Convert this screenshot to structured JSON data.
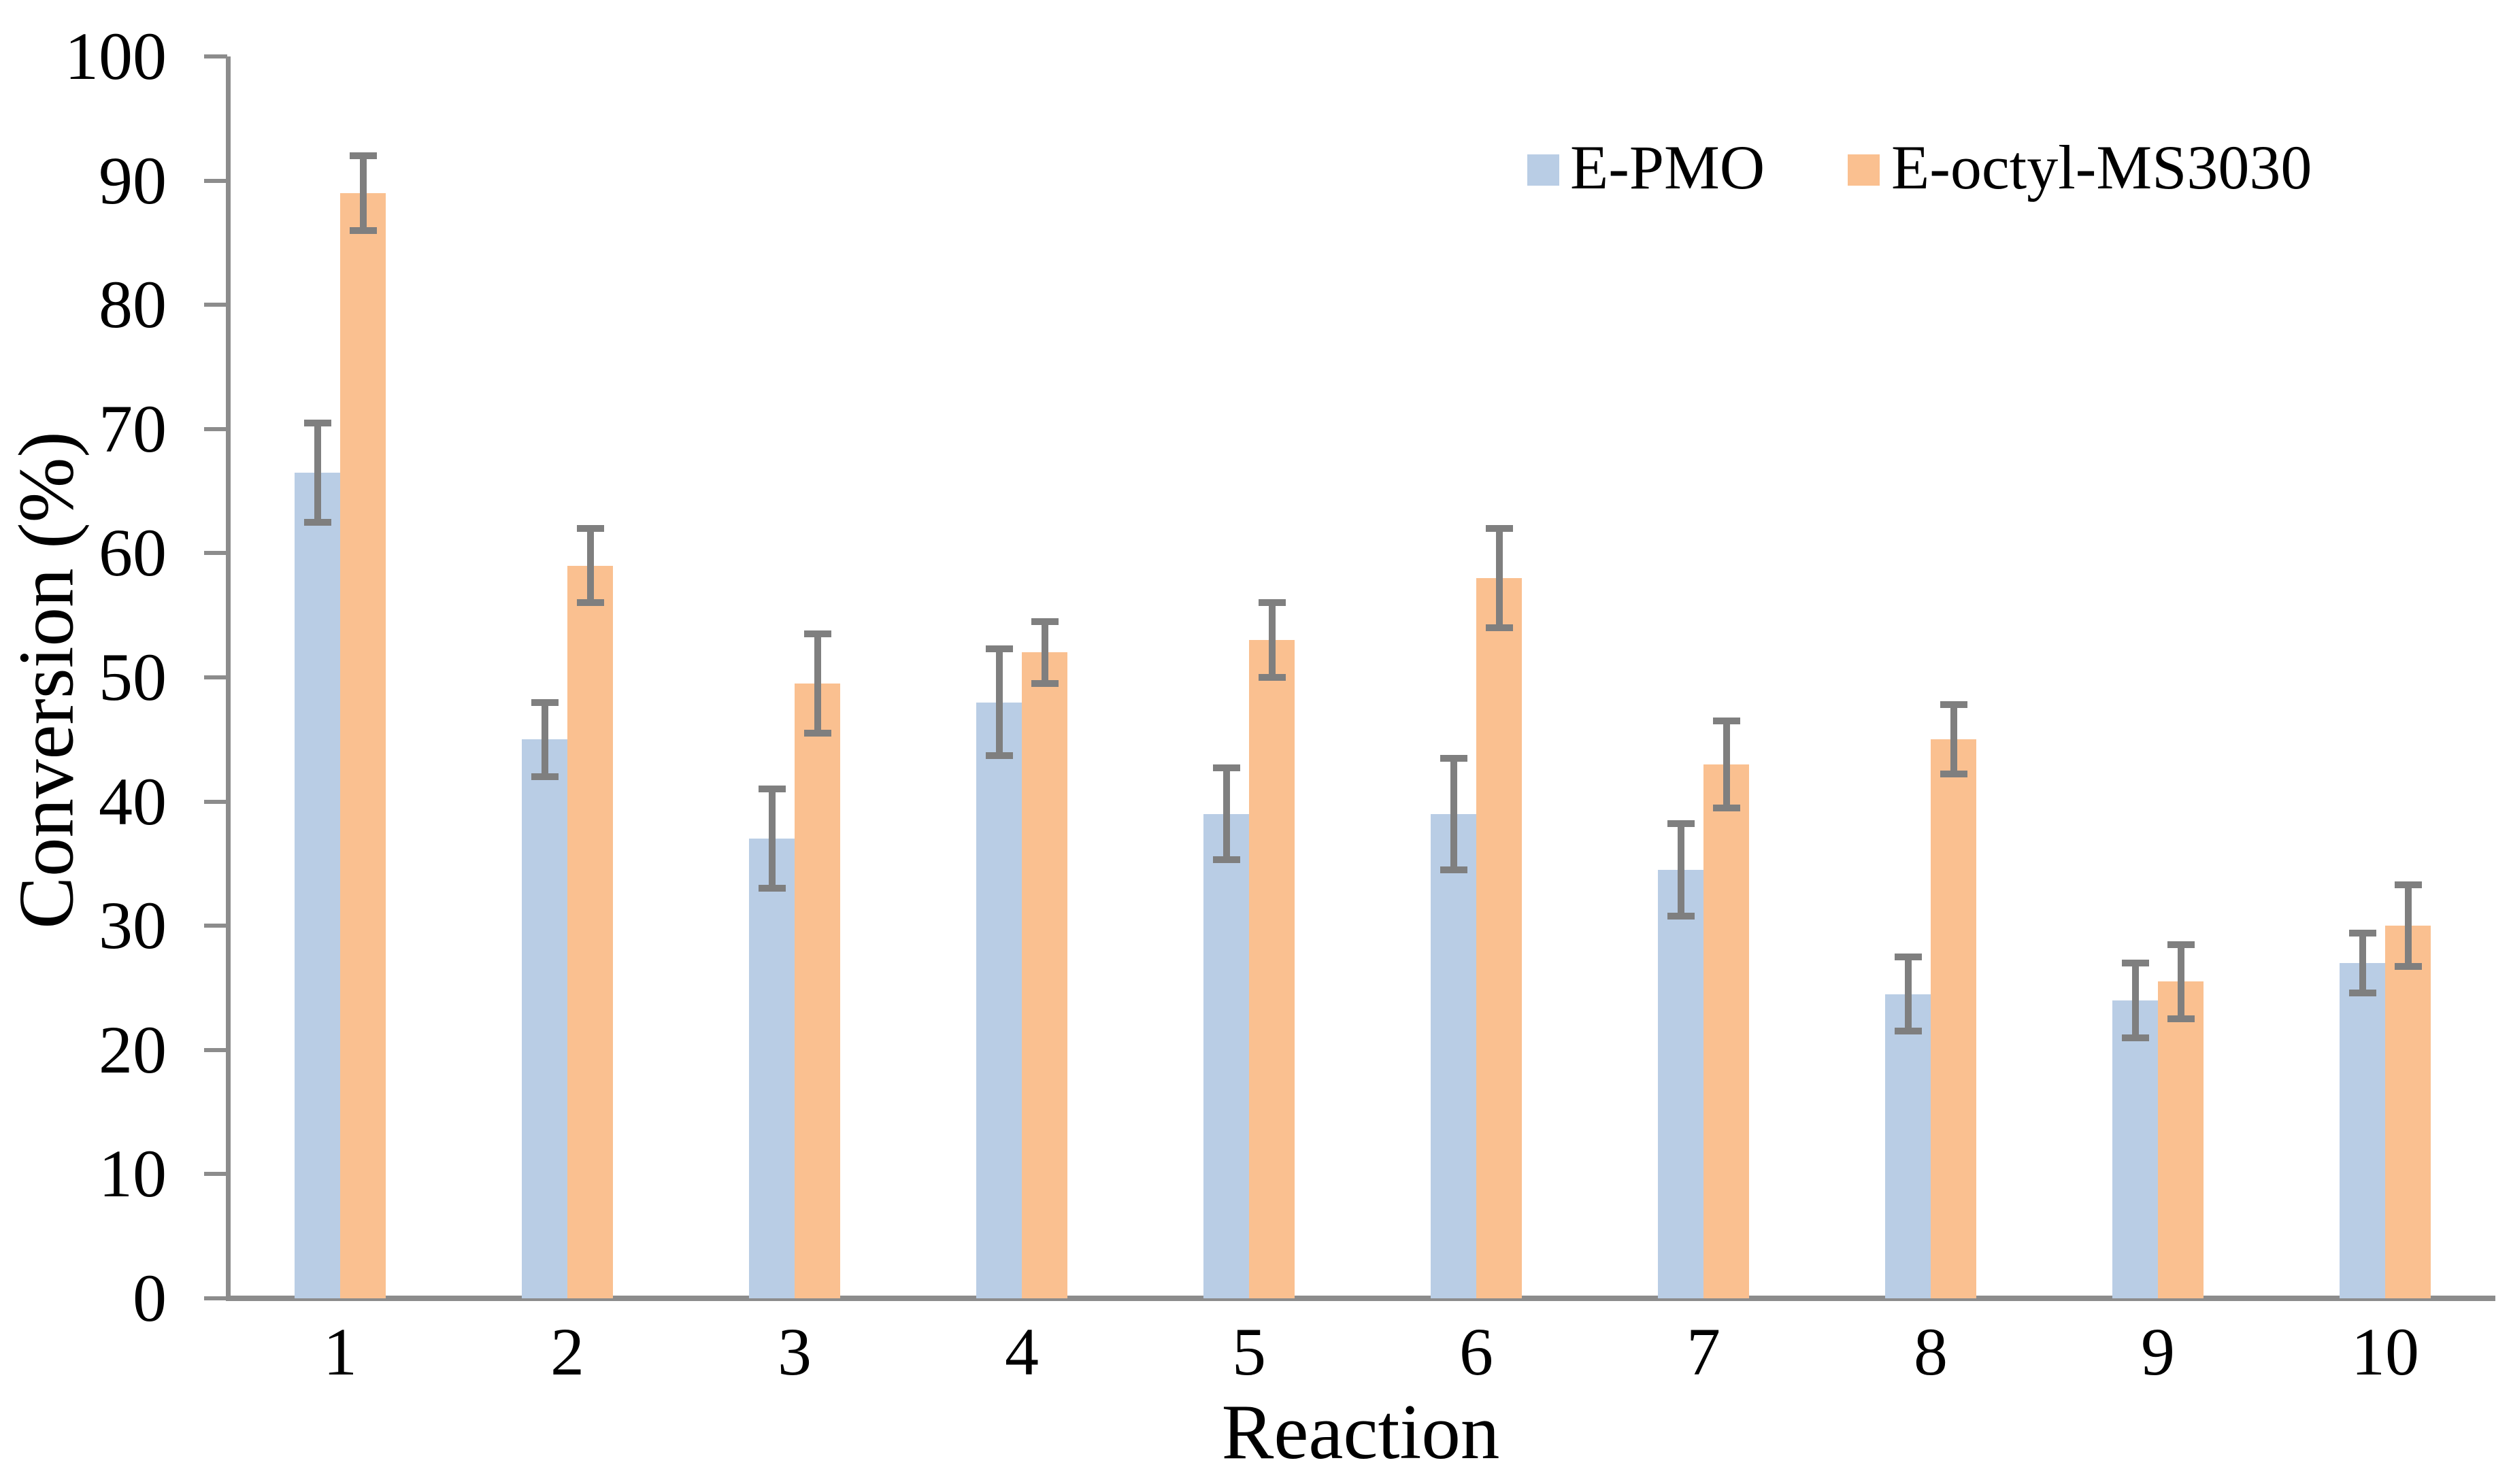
{
  "chart_data": {
    "type": "bar",
    "title": "",
    "xlabel": "Reaction",
    "ylabel": "Conversion (%)",
    "categories": [
      "1",
      "2",
      "3",
      "4",
      "5",
      "6",
      "7",
      "8",
      "9",
      "10"
    ],
    "yticks": [
      0,
      10,
      20,
      30,
      40,
      50,
      60,
      70,
      80,
      90,
      100
    ],
    "ylim": [
      0,
      100
    ],
    "grid": false,
    "legend_position": "top-right",
    "series": [
      {
        "name": "E-PMO",
        "color": "#b9cde5",
        "values": [
          66.5,
          45,
          37,
          48,
          39,
          39,
          34.5,
          24.5,
          24,
          27
        ],
        "errors": [
          4,
          3,
          4,
          4.3,
          3.7,
          4.5,
          3.7,
          3,
          3,
          2.4
        ]
      },
      {
        "name": "E-octyl-MS3030",
        "color": "#fac090",
        "values": [
          89,
          59,
          49.5,
          52,
          53,
          58,
          43,
          45,
          25.5,
          30
        ],
        "errors": [
          3,
          3,
          4,
          2.5,
          3,
          4,
          3.5,
          2.8,
          3,
          3.3
        ]
      }
    ],
    "error_bar_color": "#7f7f7f",
    "axis_color": "#8c8c8c"
  },
  "legend": {
    "items": [
      {
        "label": "E-PMO"
      },
      {
        "label": "E-octyl-MS3030"
      }
    ]
  }
}
